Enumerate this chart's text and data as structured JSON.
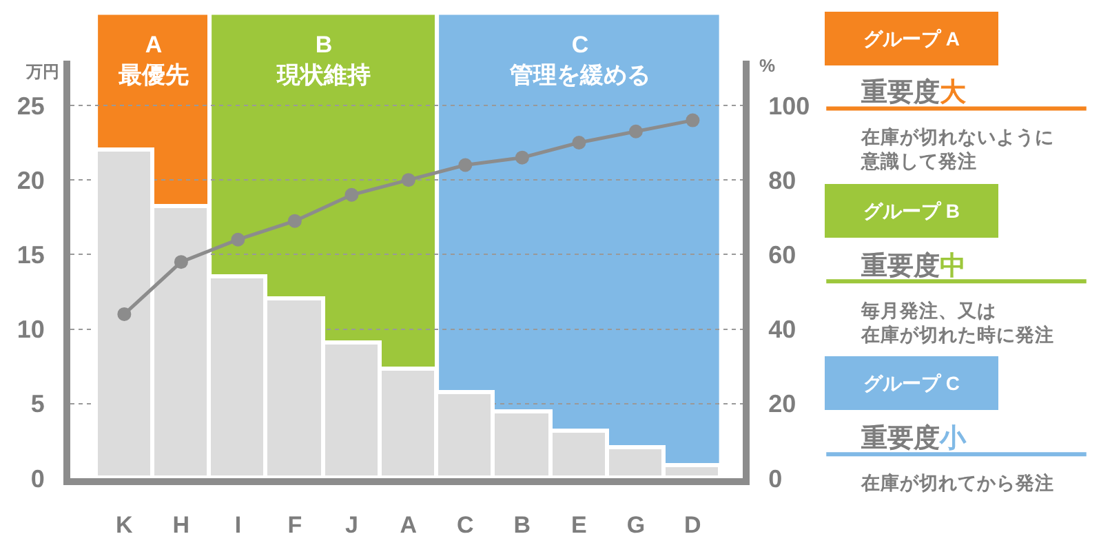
{
  "chart_data": {
    "type": "bar",
    "categories": [
      "K",
      "H",
      "I",
      "F",
      "J",
      "A",
      "C",
      "B",
      "E",
      "G",
      "D"
    ],
    "series": [
      {
        "color": "#dcdcdc",
        "values": [
          22.0,
          18.2,
          13.5,
          12.0,
          9.1,
          7.3,
          5.7,
          4.4,
          3.1,
          2.0,
          0.8
        ]
      },
      {
        "type": "line",
        "axis": "y2",
        "color": "#8c8c8c",
        "values": [
          44,
          58,
          64,
          69,
          76,
          80,
          84,
          86,
          90,
          93,
          96
        ]
      }
    ],
    "ylabel": "万円",
    "y2label": "%",
    "ylim": [
      0,
      28
    ],
    "yticks": [
      0,
      5,
      10,
      15,
      20,
      25
    ],
    "y2lim": [
      0,
      112
    ],
    "y2ticks": [
      0,
      20,
      40,
      60,
      80,
      100
    ],
    "grid": "y",
    "marker": "circle",
    "line_style": "solid",
    "bands": [
      {
        "axis": "x",
        "from": "K",
        "to": "H",
        "label": "A\n最優先",
        "color": "#f5841f"
      },
      {
        "axis": "x",
        "from": "I",
        "to": "A",
        "label": "B\n現状維持",
        "color": "#9dc73b"
      },
      {
        "axis": "x",
        "from": "C",
        "to": "D",
        "label": "C\n管理を緩める",
        "color": "#80b9e6"
      }
    ],
    "annotations": [
      "グループ A",
      "重要度大",
      "在庫が切れないように意識して発注",
      "グループ B",
      "重要度中",
      "毎月発注、又は在庫が切れた時に発注",
      "グループ C",
      "重要度小",
      "在庫が切れてから発注"
    ]
  }
}
